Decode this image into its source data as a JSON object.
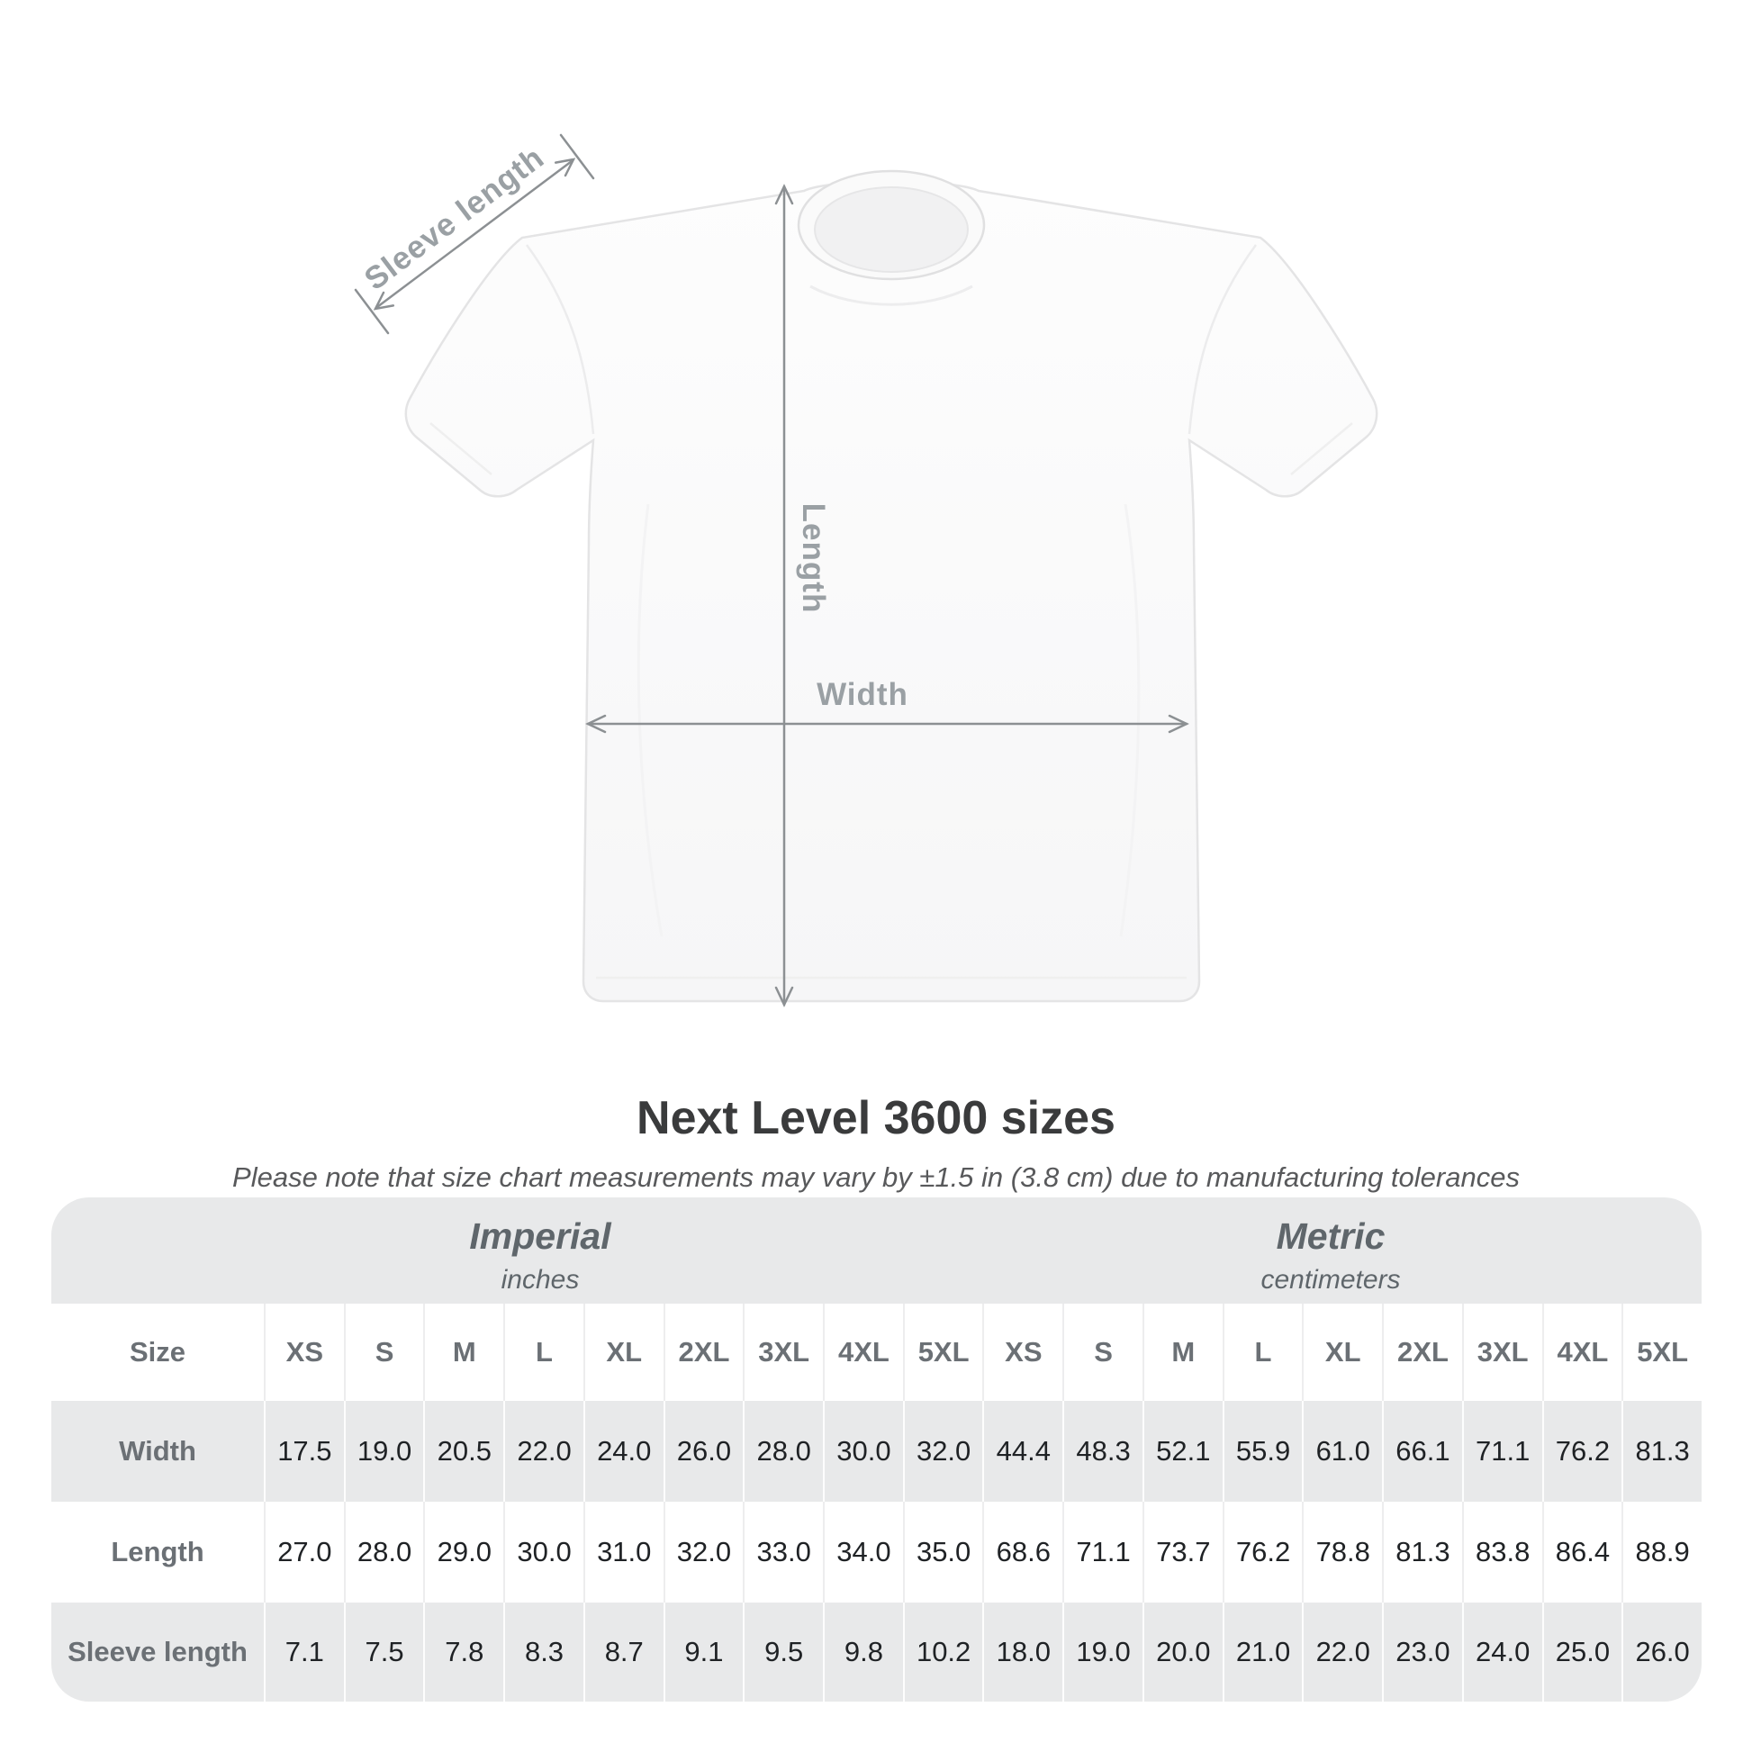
{
  "diagram": {
    "sleeve_length_label": "Sleeve length",
    "length_label": "Length",
    "width_label": "Width"
  },
  "title": "Next Level 3600 sizes",
  "subtitle": "Please note that size chart measurements may vary by ±1.5 in (3.8 cm) due to manufacturing tolerances",
  "table": {
    "size_label": "Size",
    "sizes": [
      "XS",
      "S",
      "M",
      "L",
      "XL",
      "2XL",
      "3XL",
      "4XL",
      "5XL"
    ],
    "groups": [
      {
        "name": "Imperial",
        "unit": "inches"
      },
      {
        "name": "Metric",
        "unit": "centimeters"
      }
    ],
    "rows": [
      {
        "label": "Width",
        "imperial": [
          "17.5",
          "19.0",
          "20.5",
          "22.0",
          "24.0",
          "26.0",
          "28.0",
          "30.0",
          "32.0"
        ],
        "metric": [
          "44.4",
          "48.3",
          "52.1",
          "55.9",
          "61.0",
          "66.1",
          "71.1",
          "76.2",
          "81.3"
        ]
      },
      {
        "label": "Length",
        "imperial": [
          "27.0",
          "28.0",
          "29.0",
          "30.0",
          "31.0",
          "32.0",
          "33.0",
          "34.0",
          "35.0"
        ],
        "metric": [
          "68.6",
          "71.1",
          "73.7",
          "76.2",
          "78.8",
          "81.3",
          "83.8",
          "86.4",
          "88.9"
        ]
      },
      {
        "label": "Sleeve length",
        "imperial": [
          "7.1",
          "7.5",
          "7.8",
          "8.3",
          "8.7",
          "9.1",
          "9.5",
          "9.8",
          "10.2"
        ],
        "metric": [
          "18.0",
          "19.0",
          "20.0",
          "21.0",
          "22.0",
          "23.0",
          "24.0",
          "25.0",
          "26.0"
        ]
      }
    ]
  },
  "colors": {
    "table_background": "#e8e9ea",
    "header_text": "#6b7075",
    "value_text": "#1f2225",
    "dimension_lines": "#8c9093",
    "dimension_labels": "#9aa0a4",
    "title_text": "#3a3b3c"
  },
  "chart_data": {
    "type": "table",
    "title": "Next Level 3600 sizes",
    "note": "Please note that size chart measurements may vary by ±1.5 in (3.8 cm) due to manufacturing tolerances",
    "columns": [
      "XS",
      "S",
      "M",
      "L",
      "XL",
      "2XL",
      "3XL",
      "4XL",
      "5XL"
    ],
    "units": [
      "inches",
      "centimeters"
    ],
    "rows": [
      {
        "measurement": "Width",
        "inches": [
          17.5,
          19.0,
          20.5,
          22.0,
          24.0,
          26.0,
          28.0,
          30.0,
          32.0
        ],
        "centimeters": [
          44.4,
          48.3,
          52.1,
          55.9,
          61.0,
          66.1,
          71.1,
          76.2,
          81.3
        ]
      },
      {
        "measurement": "Length",
        "inches": [
          27.0,
          28.0,
          29.0,
          30.0,
          31.0,
          32.0,
          33.0,
          34.0,
          35.0
        ],
        "centimeters": [
          68.6,
          71.1,
          73.7,
          76.2,
          78.8,
          81.3,
          83.8,
          86.4,
          88.9
        ]
      },
      {
        "measurement": "Sleeve length",
        "inches": [
          7.1,
          7.5,
          7.8,
          8.3,
          8.7,
          9.1,
          9.5,
          9.8,
          10.2
        ],
        "centimeters": [
          18.0,
          19.0,
          20.0,
          21.0,
          22.0,
          23.0,
          24.0,
          25.0,
          26.0
        ]
      }
    ]
  }
}
